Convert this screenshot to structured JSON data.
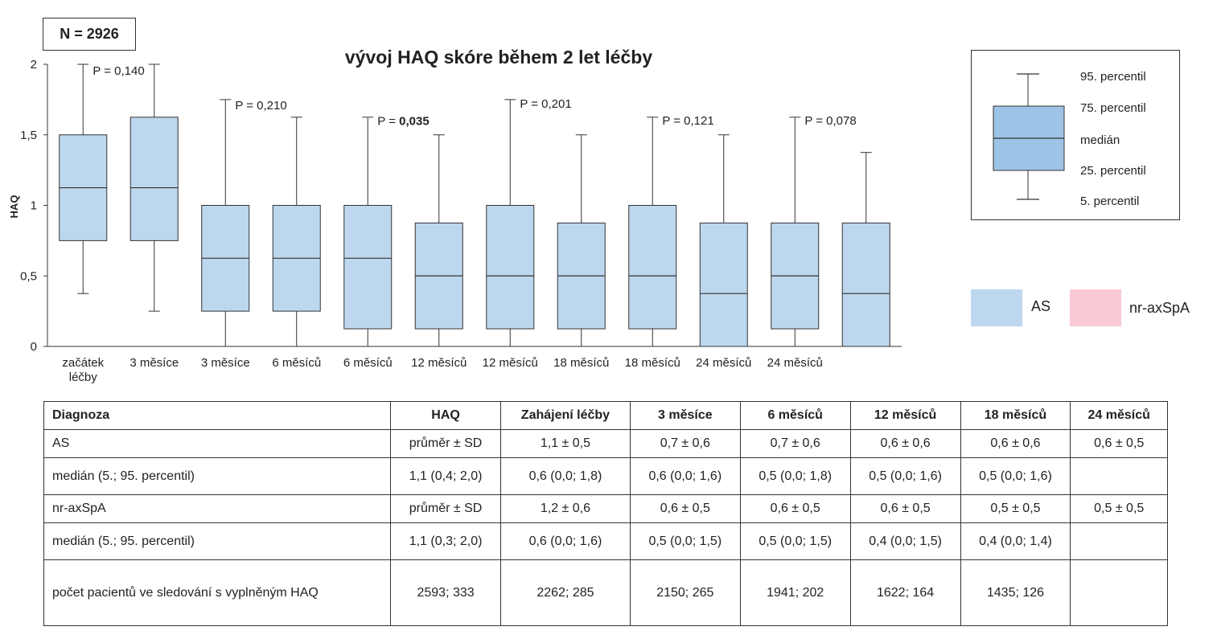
{
  "n_label": "N = 2926",
  "chart_data": {
    "type": "box",
    "title": "vývoj HAQ skóre během 2 let léčby",
    "ylabel": "HAQ",
    "ylim": [
      0,
      2
    ],
    "yticks": [
      "0",
      "0,5",
      "1",
      "1,5",
      "2"
    ],
    "yticks_values": [
      0,
      0.5,
      1,
      1.5,
      2
    ],
    "grid": false,
    "box_color": "#bdd7ee",
    "categories": [
      "začátek\nléčby",
      "3 měsíce",
      "3 měsíce",
      "6 měsíců",
      "6 měsíců",
      "12 měsíců",
      "12 měsíců",
      "18 měsíců",
      "18 měsíců",
      "24 měsíců",
      "24 měsíců",
      ""
    ],
    "boxes": [
      {
        "p5": 0.375,
        "q1": 0.75,
        "median": 1.125,
        "q3": 1.5,
        "p95": 2.0
      },
      {
        "p5": 0.25,
        "q1": 0.75,
        "median": 1.125,
        "q3": 1.625,
        "p95": 2.0
      },
      {
        "p5": 0.0,
        "q1": 0.25,
        "median": 0.625,
        "q3": 1.0,
        "p95": 1.75
      },
      {
        "p5": 0.0,
        "q1": 0.25,
        "median": 0.625,
        "q3": 1.0,
        "p95": 1.625
      },
      {
        "p5": 0.0,
        "q1": 0.125,
        "median": 0.625,
        "q3": 1.0,
        "p95": 1.625
      },
      {
        "p5": 0.0,
        "q1": 0.125,
        "median": 0.5,
        "q3": 0.875,
        "p95": 1.5
      },
      {
        "p5": 0.0,
        "q1": 0.125,
        "median": 0.5,
        "q3": 1.0,
        "p95": 1.75
      },
      {
        "p5": 0.0,
        "q1": 0.125,
        "median": 0.5,
        "q3": 0.875,
        "p95": 1.5
      },
      {
        "p5": 0.0,
        "q1": 0.125,
        "median": 0.5,
        "q3": 1.0,
        "p95": 1.625
      },
      {
        "p5": 0.0,
        "q1": 0.0,
        "median": 0.375,
        "q3": 0.875,
        "p95": 1.5
      },
      {
        "p5": 0.0,
        "q1": 0.125,
        "median": 0.5,
        "q3": 0.875,
        "p95": 1.625
      },
      {
        "p5": 0.0,
        "q1": 0.0,
        "median": 0.375,
        "q3": 0.875,
        "p95": 1.375
      }
    ],
    "annotations": [
      {
        "text": "P = 0,140",
        "bold": false,
        "pair": 0,
        "y": 2.0
      },
      {
        "text": "P = 0,210",
        "bold": false,
        "pair": 1,
        "y": 1.755
      },
      {
        "pre": "P = ",
        "text": "0,035",
        "bold": true,
        "pair": 2,
        "y": 1.643
      },
      {
        "text": "P = 0,201",
        "bold": false,
        "pair": 3,
        "y": 1.765
      },
      {
        "text": "P = 0,121",
        "bold": false,
        "pair": 4,
        "y": 1.648
      },
      {
        "text": "P = 0,078",
        "bold": false,
        "pair": 5,
        "y": 1.648
      }
    ],
    "series": [
      {
        "name": "AS",
        "color": "#bdd7ee"
      },
      {
        "name": "nr-axSpA",
        "color": "#f9c9d6"
      }
    ]
  },
  "box_legend": {
    "labels": [
      "95. percentil",
      "75. percentil",
      "medián",
      "25. percentil",
      "5. percentil"
    ],
    "color": "#9dc3e6"
  },
  "table": {
    "headers": [
      "Diagnoza",
      "HAQ",
      "Zahájení léčby",
      "3 měsíce",
      "6 měsíců",
      "12 měsíců",
      "18 měsíců",
      "24 měsíců"
    ],
    "rows": [
      [
        "AS",
        "průměr ± SD",
        "1,1 ± 0,5",
        "0,7 ± 0,6",
        "0,7 ± 0,6",
        "0,6 ± 0,6",
        "0,6 ± 0,6",
        "0,6 ± 0,5"
      ],
      [
        "medián (5.; 95. percentil)",
        "1,1 (0,4; 2,0)",
        "0,6 (0,0; 1,8)",
        "0,6 (0,0; 1,6)",
        "0,5 (0,0; 1,8)",
        "0,5 (0,0; 1,6)",
        "0,5 (0,0; 1,6)",
        ""
      ],
      [
        "nr-axSpA",
        "průměr ± SD",
        "1,2 ± 0,6",
        "0,6 ± 0,5",
        "0,6 ± 0,5",
        "0,6 ± 0,5",
        "0,5 ± 0,5",
        "0,5 ± 0,5"
      ],
      [
        "medián (5.; 95. percentil)",
        "1,1 (0,3; 2,0)",
        "0,6 (0,0; 1,6)",
        "0,5 (0,0; 1,5)",
        "0,5 (0,0; 1,5)",
        "0,4 (0,0; 1,5)",
        "0,4 (0,0; 1,4)",
        ""
      ],
      [
        "počet pacientů ve sledování s vyplněným HAQ",
        "2593; 333",
        "2262; 285",
        "2150; 265",
        "1941; 202",
        "1622; 164",
        "1435; 126",
        ""
      ]
    ]
  }
}
